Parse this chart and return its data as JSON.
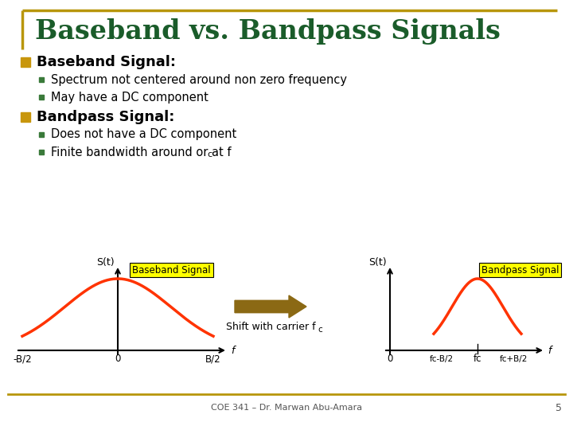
{
  "title": "Baseband vs. Bandpass Signals",
  "title_color": "#1a5c2a",
  "title_fontsize": 24,
  "bg_color": "#ffffff",
  "border_top_color": "#b8960c",
  "bullet_color": "#c8960c",
  "sub_bullet_color": "#3a7a3a",
  "heading1": "Baseband Signal:",
  "heading1_color": "#000000",
  "items1": [
    "Spectrum not centered around non zero frequency",
    "May have a DC component"
  ],
  "heading2": "Bandpass Signal:",
  "heading2_color": "#000000",
  "items2": [
    "Does not have a DC component",
    "Finite bandwidth around or at f_c"
  ],
  "signal_color": "#ff3300",
  "arrow_color": "#8b6914",
  "label_color": "#000000",
  "bb_label": "Baseband Signal",
  "bp_label": "Bandpass Signal",
  "bb_label_bg": "#ffff00",
  "bp_label_bg": "#ffff00",
  "arrow_text": "Shift with carrier f",
  "footer": "COE 341 – Dr. Marwan Abu-Amara",
  "footer_color": "#555555",
  "page_num": "5",
  "footer_line_color": "#b8960c"
}
